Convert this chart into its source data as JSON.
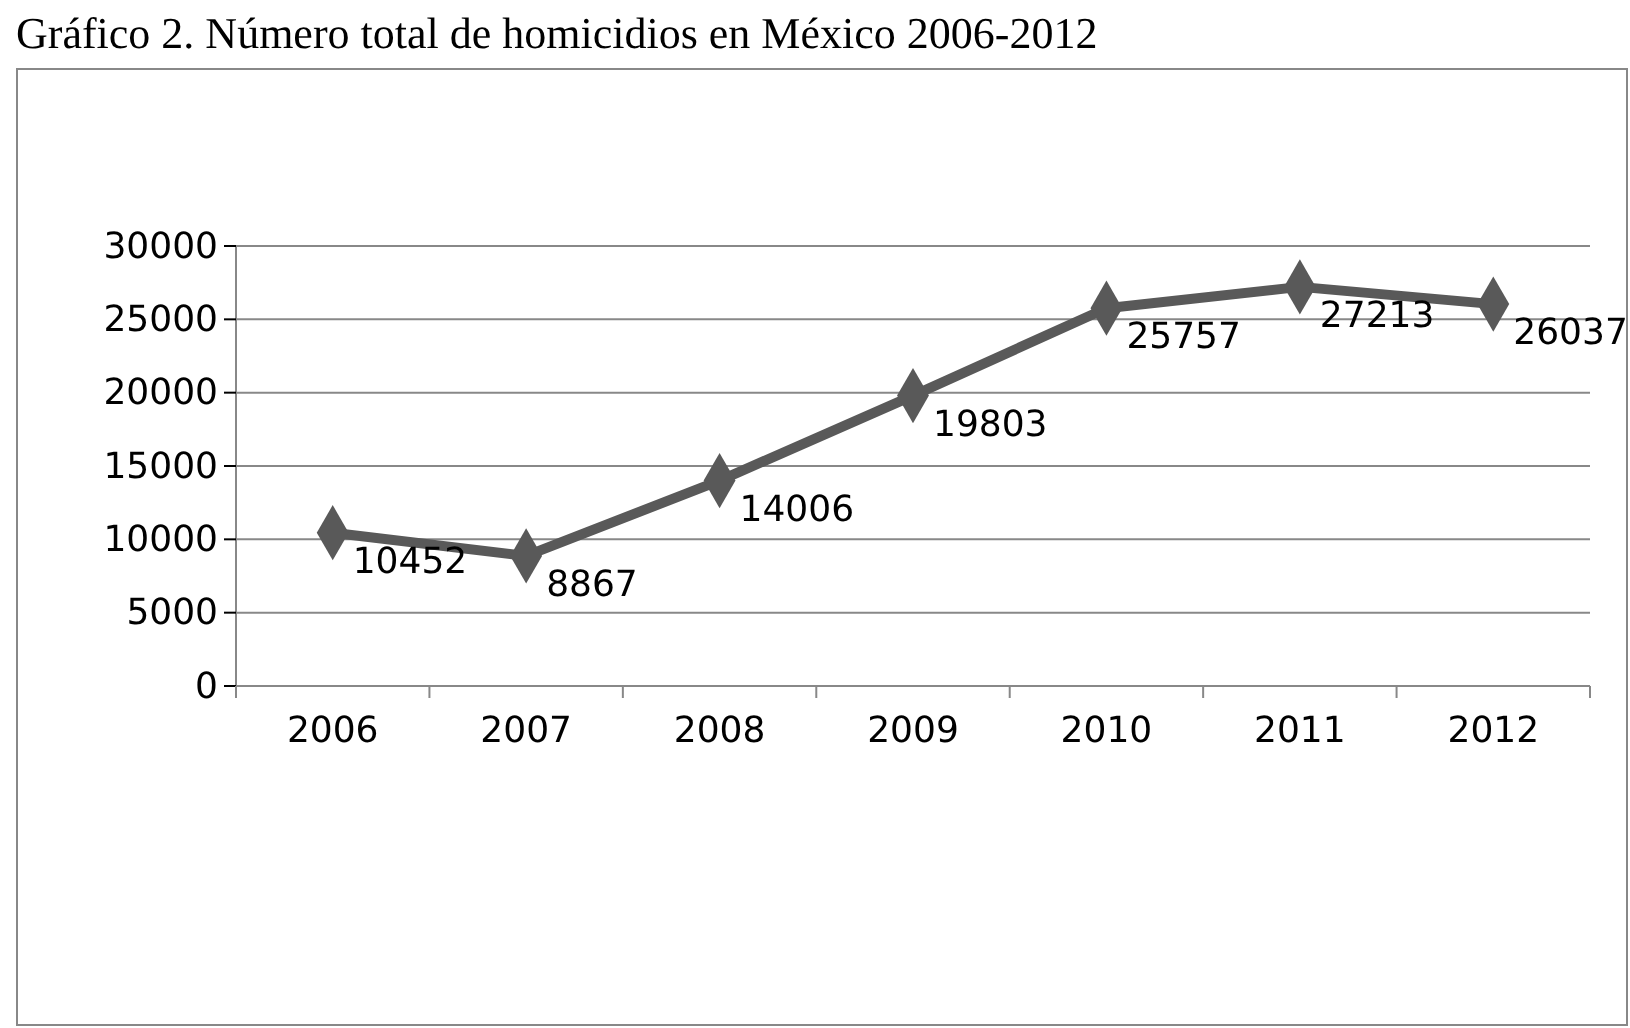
{
  "chart_data": {
    "type": "line",
    "title": "Gráfico 2. Número total de homicidios en México 2006-2012",
    "categories": [
      "2006",
      "2007",
      "2008",
      "2009",
      "2010",
      "2011",
      "2012"
    ],
    "series": [
      {
        "color": "#595959",
        "values": [
          10452,
          8867,
          14006,
          19803,
          25757,
          27213,
          26037
        ]
      }
    ],
    "ylim": [
      0,
      30000
    ],
    "yticks": [
      0,
      5000,
      10000,
      15000,
      20000,
      25000,
      30000
    ],
    "grid": "y",
    "marker": "diamond",
    "data_labels": true
  }
}
